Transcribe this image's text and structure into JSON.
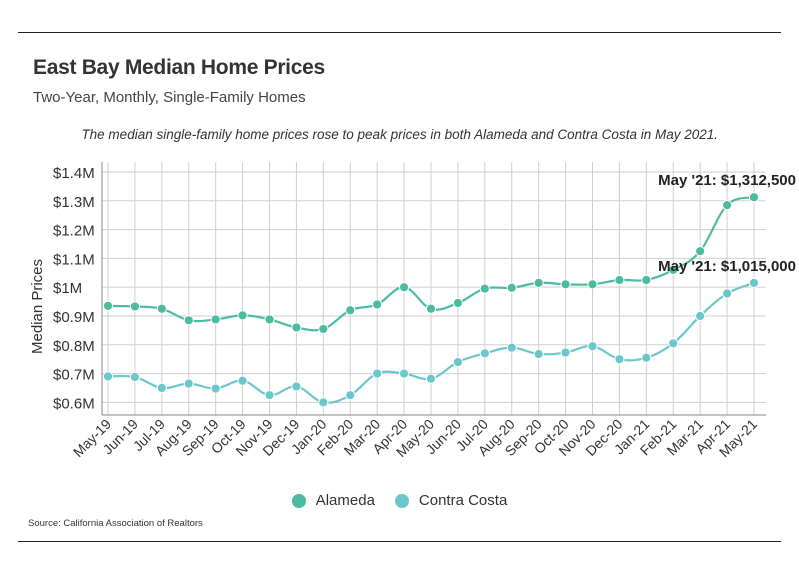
{
  "header": {
    "title": "East Bay Median Home Prices",
    "subtitle": "Two-Year, Monthly, Single-Family Homes",
    "note": "The median single-family home prices rose to peak prices in both Alameda and Contra Costa in May 2021."
  },
  "footer": {
    "source": "Source:  California Association of Realtors"
  },
  "colors": {
    "alameda": "#4dbba0",
    "contra_costa": "#6cc7cc",
    "grid": "#cfcfcf",
    "axis": "#888888"
  },
  "chart_data": {
    "type": "line",
    "title": "East Bay Median Home Prices",
    "subtitle": "Two-Year, Monthly, Single-Family Homes",
    "xlabel": "",
    "ylabel": "Median Prices",
    "x": [
      "May-19",
      "Jun-19",
      "Jul-19",
      "Aug-19",
      "Sep-19",
      "Oct-19",
      "Nov-19",
      "Dec-19",
      "Jan-20",
      "Feb-20",
      "Mar-20",
      "Apr-20",
      "May-20",
      "Jun-20",
      "Jul-20",
      "Aug-20",
      "Sep-20",
      "Oct-20",
      "Nov-20",
      "Dec-20",
      "Jan-21",
      "Feb-21",
      "Mar-21",
      "Apr-21",
      "May-21"
    ],
    "ylim": [
      570000,
      1400000
    ],
    "yticks": [
      600000,
      700000,
      800000,
      900000,
      1000000,
      1100000,
      1200000,
      1300000,
      1400000
    ],
    "ytick_labels": [
      "$0.6M",
      "$0.7M",
      "$0.8M",
      "$0.9M",
      "$1M",
      "$1.1M",
      "$1.2M",
      "$1.3M",
      "$1.4M"
    ],
    "grid": true,
    "legend_position": "bottom-center",
    "series": [
      {
        "name": "Alameda",
        "values": [
          935000,
          933000,
          925000,
          885000,
          888000,
          902000,
          888000,
          860000,
          855000,
          920000,
          940000,
          1000000,
          925000,
          945000,
          995000,
          998000,
          1015000,
          1010000,
          1010000,
          1025000,
          1025000,
          1060000,
          1125000,
          1285000,
          1312500
        ]
      },
      {
        "name": "Contra Costa",
        "values": [
          690000,
          688000,
          650000,
          665000,
          648000,
          675000,
          625000,
          655000,
          600000,
          625000,
          700000,
          700000,
          682000,
          740000,
          770000,
          790000,
          768000,
          773000,
          795000,
          750000,
          755000,
          805000,
          900000,
          978000,
          1015000
        ]
      }
    ],
    "annotations": [
      {
        "series": "Alameda",
        "x": "May-21",
        "text": "May '21: $1,312,500"
      },
      {
        "series": "Contra Costa",
        "x": "May-21",
        "text": "May '21: $1,015,000"
      }
    ]
  }
}
